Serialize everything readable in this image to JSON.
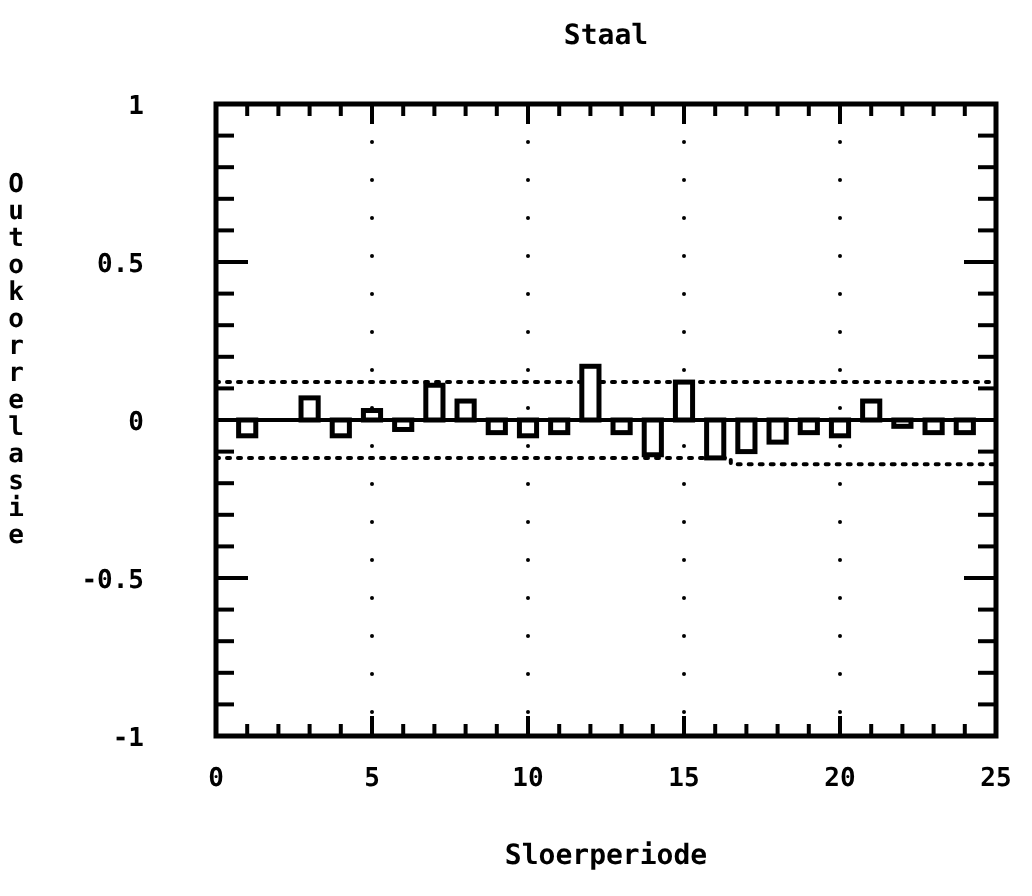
{
  "chart_data": {
    "type": "bar",
    "title": "Staal",
    "xlabel": "Sloerperiode",
    "ylabel": "Outokorrelasie",
    "x": [
      1,
      2,
      3,
      4,
      5,
      6,
      7,
      8,
      9,
      10,
      11,
      12,
      13,
      14,
      15,
      16,
      17,
      18,
      19,
      20,
      21,
      22,
      23,
      24
    ],
    "series": [
      {
        "color": "#000000",
        "values": [
          -0.05,
          0,
          0.07,
          -0.05,
          0.03,
          -0.03,
          0.11,
          0.06,
          -0.04,
          -0.05,
          -0.04,
          0.17,
          -0.04,
          -0.11,
          0.12,
          -0.12,
          -0.1,
          -0.07,
          -0.04,
          -0.05,
          0.06,
          -0.02,
          -0.04,
          -0.04
        ]
      },
      {
        "type": "line",
        "color": "#000000",
        "line_style": "dotted",
        "x": [
          0,
          25
        ],
        "values": [
          0.12,
          0.12
        ]
      },
      {
        "type": "line",
        "color": "#000000",
        "line_style": "dotted",
        "x": [
          0,
          16.5,
          16.5,
          25
        ],
        "values": [
          -0.12,
          -0.12,
          -0.14,
          -0.14
        ]
      }
    ],
    "ref_lines": [
      {
        "axis": "y",
        "value": 0,
        "color": "#000000",
        "line_style": "solid"
      }
    ],
    "xlim": [
      0,
      25
    ],
    "xticks": [
      0,
      {
        "value": 1,
        "label": null
      },
      {
        "value": 2,
        "label": null
      },
      {
        "value": 3,
        "label": null
      },
      {
        "value": 4,
        "label": null
      },
      5,
      {
        "value": 6,
        "label": null
      },
      {
        "value": 7,
        "label": null
      },
      {
        "value": 8,
        "label": null
      },
      {
        "value": 9,
        "label": null
      },
      10,
      {
        "value": 11,
        "label": null
      },
      {
        "value": 12,
        "label": null
      },
      {
        "value": 13,
        "label": null
      },
      {
        "value": 14,
        "label": null
      },
      15,
      {
        "value": 16,
        "label": null
      },
      {
        "value": 17,
        "label": null
      },
      {
        "value": 18,
        "label": null
      },
      {
        "value": 19,
        "label": null
      },
      20,
      {
        "value": 21,
        "label": null
      },
      {
        "value": 22,
        "label": null
      },
      {
        "value": 23,
        "label": null
      },
      {
        "value": 24,
        "label": null
      },
      25
    ],
    "ylim": [
      -1,
      1
    ],
    "yticks": [
      -1,
      {
        "value": -0.9,
        "label": null
      },
      {
        "value": -0.8,
        "label": null
      },
      {
        "value": -0.7,
        "label": null
      },
      {
        "value": -0.6,
        "label": null
      },
      -0.5,
      {
        "value": -0.4,
        "label": null
      },
      {
        "value": -0.3,
        "label": null
      },
      {
        "value": -0.2,
        "label": null
      },
      {
        "value": -0.1,
        "label": null
      },
      0,
      {
        "value": 0.1,
        "label": null
      },
      {
        "value": 0.2,
        "label": null
      },
      {
        "value": 0.3,
        "label": null
      },
      {
        "value": 0.4,
        "label": null
      },
      0.5,
      {
        "value": 0.6,
        "label": null
      },
      {
        "value": 0.7,
        "label": null
      },
      {
        "value": 0.8,
        "label": null
      },
      {
        "value": 0.9,
        "label": null
      },
      1
    ],
    "grid": "x"
  }
}
